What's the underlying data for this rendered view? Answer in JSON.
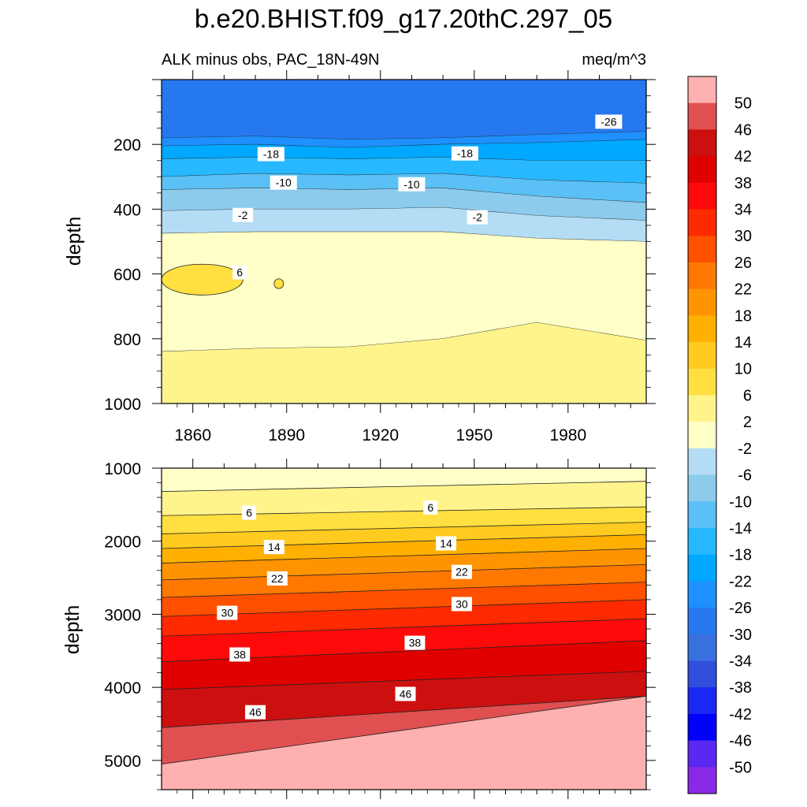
{
  "chart_data": {
    "type": "contour",
    "title": "b.e20.BHIST.f09_g17.20thC.297_05",
    "variable_label": "ALK minus obs, PAC_18N-49N",
    "units": "meq/m^3",
    "ylabel": "depth",
    "xlim": [
      1850,
      2005
    ],
    "x_ticks": [
      "1860",
      "1890",
      "1920",
      "1950",
      "1980"
    ],
    "panels": [
      {
        "name": "upper",
        "ylim": [
          0,
          1000
        ],
        "y_ticks": [
          "200",
          "400",
          "600",
          "800",
          "1000"
        ],
        "regions": [
          {
            "level_bin": "-30",
            "upper": 0,
            "lower": [
              [
                1850,
                180
              ],
              [
                1880,
                175
              ],
              [
                1910,
                185
              ],
              [
                1940,
                180
              ],
              [
                1970,
                170
              ],
              [
                2005,
                160
              ]
            ]
          },
          {
            "level_bin": "-26",
            "upper": [
              [
                1850,
                180
              ],
              [
                1880,
                175
              ],
              [
                1910,
                185
              ],
              [
                1940,
                180
              ],
              [
                1970,
                170
              ],
              [
                2005,
                160
              ]
            ],
            "lower": [
              [
                1850,
                205
              ],
              [
                1880,
                200
              ],
              [
                1910,
                210
              ],
              [
                1940,
                200
              ],
              [
                1970,
                195
              ],
              [
                2005,
                185
              ]
            ]
          },
          {
            "level_bin": "-22",
            "upper": [
              [
                1850,
                205
              ],
              [
                1880,
                200
              ],
              [
                1910,
                210
              ],
              [
                1940,
                200
              ],
              [
                1970,
                195
              ],
              [
                2005,
                185
              ]
            ],
            "lower": [
              [
                1850,
                245
              ],
              [
                1880,
                240
              ],
              [
                1910,
                245
              ],
              [
                1940,
                240
              ],
              [
                1970,
                250
              ],
              [
                2005,
                250
              ]
            ]
          },
          {
            "level_bin": "-18",
            "upper": [
              [
                1850,
                245
              ],
              [
                1880,
                240
              ],
              [
                1910,
                245
              ],
              [
                1940,
                240
              ],
              [
                1970,
                250
              ],
              [
                2005,
                250
              ]
            ],
            "lower": [
              [
                1850,
                300
              ],
              [
                1880,
                290
              ],
              [
                1910,
                295
              ],
              [
                1940,
                290
              ],
              [
                1970,
                310
              ],
              [
                2005,
                320
              ]
            ]
          },
          {
            "level_bin": "-14",
            "upper": [
              [
                1850,
                300
              ],
              [
                1880,
                290
              ],
              [
                1910,
                295
              ],
              [
                1940,
                290
              ],
              [
                1970,
                310
              ],
              [
                2005,
                320
              ]
            ],
            "lower": [
              [
                1850,
                340
              ],
              [
                1880,
                335
              ],
              [
                1910,
                340
              ],
              [
                1940,
                335
              ],
              [
                1970,
                360
              ],
              [
                2005,
                380
              ]
            ]
          },
          {
            "level_bin": "-10",
            "upper": [
              [
                1850,
                340
              ],
              [
                1880,
                335
              ],
              [
                1910,
                340
              ],
              [
                1940,
                335
              ],
              [
                1970,
                360
              ],
              [
                2005,
                380
              ]
            ],
            "lower": [
              [
                1850,
                405
              ],
              [
                1880,
                400
              ],
              [
                1910,
                400
              ],
              [
                1940,
                395
              ],
              [
                1970,
                420
              ],
              [
                2005,
                435
              ]
            ]
          },
          {
            "level_bin": "-6",
            "upper": [
              [
                1850,
                405
              ],
              [
                1880,
                400
              ],
              [
                1910,
                400
              ],
              [
                1940,
                395
              ],
              [
                1970,
                420
              ],
              [
                2005,
                435
              ]
            ],
            "lower": [
              [
                1850,
                475
              ],
              [
                1880,
                470
              ],
              [
                1910,
                470
              ],
              [
                1940,
                470
              ],
              [
                1970,
                490
              ],
              [
                2005,
                500
              ]
            ]
          },
          {
            "level_bin": "-2",
            "upper": [
              [
                1850,
                475
              ],
              [
                1880,
                470
              ],
              [
                1910,
                470
              ],
              [
                1940,
                470
              ],
              [
                1970,
                490
              ],
              [
                2005,
                500
              ]
            ],
            "lower": [
              [
                1850,
                840
              ],
              [
                1880,
                830
              ],
              [
                1910,
                825
              ],
              [
                1940,
                800
              ],
              [
                1970,
                750
              ],
              [
                2005,
                805
              ]
            ]
          },
          {
            "level_bin": "2",
            "upper": [
              [
                1850,
                840
              ],
              [
                1880,
                830
              ],
              [
                1910,
                825
              ],
              [
                1940,
                800
              ],
              [
                1970,
                750
              ],
              [
                2005,
                805
              ]
            ],
            "lower": 1000
          }
        ],
        "islands": [
          {
            "level_bin": "6",
            "x": [
              1850,
              1876
            ],
            "y": [
              570,
              665
            ]
          },
          {
            "level_bin": "6",
            "x": [
              1886,
              1889
            ],
            "y": [
              615,
              645
            ]
          }
        ],
        "contour_labels": [
          {
            "text": "-26",
            "x": 1993,
            "y": 130
          },
          {
            "text": "-18",
            "x": 1885,
            "y": 230
          },
          {
            "text": "-18",
            "x": 1947,
            "y": 228
          },
          {
            "text": "-10",
            "x": 1889,
            "y": 318
          },
          {
            "text": "-10",
            "x": 1930,
            "y": 323
          },
          {
            "text": "-2",
            "x": 1876,
            "y": 418
          },
          {
            "text": "-2",
            "x": 1951,
            "y": 425
          },
          {
            "text": "6",
            "x": 1875,
            "y": 595
          }
        ]
      },
      {
        "name": "lower",
        "ylim": [
          1000,
          5400
        ],
        "y_ticks": [
          "1000",
          "2000",
          "3000",
          "4000",
          "5000"
        ],
        "boundaries": [
          {
            "level": 2,
            "left": 1320,
            "right": 1180
          },
          {
            "level": 6,
            "left": 1650,
            "right": 1530
          },
          {
            "level": 10,
            "left": 1900,
            "right": 1740
          },
          {
            "level": 14,
            "left": 2100,
            "right": 1910
          },
          {
            "level": 18,
            "left": 2300,
            "right": 2100
          },
          {
            "level": 22,
            "left": 2530,
            "right": 2320
          },
          {
            "level": 26,
            "left": 2770,
            "right": 2560
          },
          {
            "level": 30,
            "left": 3030,
            "right": 2800
          },
          {
            "level": 34,
            "left": 3300,
            "right": 3060
          },
          {
            "level": 38,
            "left": 3650,
            "right": 3360
          },
          {
            "level": 42,
            "left": 4030,
            "right": 3780
          },
          {
            "level": 46,
            "left": 4550,
            "right": 4120
          },
          {
            "level": 50,
            "left": 5050,
            "right": 4120
          }
        ],
        "contour_labels": [
          {
            "text": "6",
            "x": 1878,
            "y": 1610
          },
          {
            "text": "6",
            "x": 1936,
            "y": 1540
          },
          {
            "text": "14",
            "x": 1886,
            "y": 2080
          },
          {
            "text": "14",
            "x": 1941,
            "y": 2030
          },
          {
            "text": "22",
            "x": 1887,
            "y": 2510
          },
          {
            "text": "22",
            "x": 1946,
            "y": 2420
          },
          {
            "text": "30",
            "x": 1871,
            "y": 2980
          },
          {
            "text": "30",
            "x": 1946,
            "y": 2860
          },
          {
            "text": "38",
            "x": 1875,
            "y": 3550
          },
          {
            "text": "38",
            "x": 1931,
            "y": 3390
          },
          {
            "text": "46",
            "x": 1880,
            "y": 4340
          },
          {
            "text": "46",
            "x": 1928,
            "y": 4090
          }
        ]
      }
    ],
    "colorbar": {
      "labels": [
        "50",
        "46",
        "42",
        "38",
        "34",
        "30",
        "26",
        "22",
        "18",
        "14",
        "10",
        "6",
        "2",
        "-2",
        "-6",
        "-10",
        "-14",
        "-18",
        "-22",
        "-26",
        "-30",
        "-34",
        "-38",
        "-42",
        "-46",
        "-50"
      ],
      "bins": [
        {
          "bin": ">50",
          "color": "#ffb0b0"
        },
        {
          "bin": "46",
          "color": "#e05050"
        },
        {
          "bin": "42",
          "color": "#cc1010"
        },
        {
          "bin": "38",
          "color": "#e00000"
        },
        {
          "bin": "34",
          "color": "#ff0a0a"
        },
        {
          "bin": "30",
          "color": "#ff2a00"
        },
        {
          "bin": "26",
          "color": "#ff5000"
        },
        {
          "bin": "22",
          "color": "#ff7800"
        },
        {
          "bin": "18",
          "color": "#ff9400"
        },
        {
          "bin": "14",
          "color": "#ffb000"
        },
        {
          "bin": "10",
          "color": "#ffcb20"
        },
        {
          "bin": "6",
          "color": "#ffe040"
        },
        {
          "bin": "2",
          "color": "#fff48c"
        },
        {
          "bin": "-2",
          "color": "#ffffc8"
        },
        {
          "bin": "-6",
          "color": "#b4ddf5"
        },
        {
          "bin": "-10",
          "color": "#8ccbec"
        },
        {
          "bin": "-14",
          "color": "#5ac0f5"
        },
        {
          "bin": "-18",
          "color": "#28b8ff"
        },
        {
          "bin": "-22",
          "color": "#00a8ff"
        },
        {
          "bin": "-26",
          "color": "#1e90ff"
        },
        {
          "bin": "-30",
          "color": "#2678ee"
        },
        {
          "bin": "-34",
          "color": "#3870e0"
        },
        {
          "bin": "-38",
          "color": "#3050dc"
        },
        {
          "bin": "-42",
          "color": "#1a28f5"
        },
        {
          "bin": "-46",
          "color": "#0000ff"
        },
        {
          "bin": "-50",
          "color": "#5a28f0"
        },
        {
          "bin": "<-50",
          "color": "#8a28e8"
        }
      ]
    }
  }
}
